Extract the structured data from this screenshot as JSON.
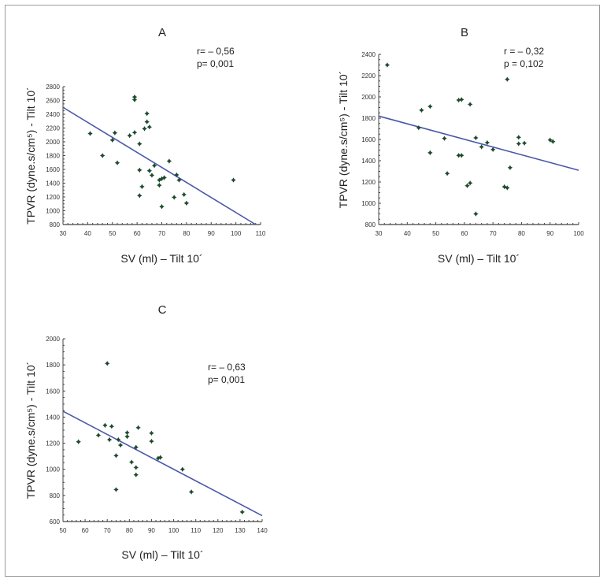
{
  "colors": {
    "point": "#1d4a2c",
    "fit_line": "#4a58a8",
    "axis": "#444444"
  },
  "chart_data": [
    {
      "type": "scatter",
      "title": "A",
      "xlabel": "SV (ml) – Tilt 10´",
      "ylabel": "TPVR (dyne.s/cm⁵) - Tilt 10´",
      "annotations": [
        "r= – 0,56",
        "p= 0,001"
      ],
      "xlim": [
        30,
        110
      ],
      "ylim": [
        800,
        2800
      ],
      "xticks": [
        30,
        40,
        50,
        60,
        70,
        80,
        90,
        100,
        110
      ],
      "yticks": [
        800,
        1000,
        1200,
        1400,
        1600,
        1800,
        2000,
        2200,
        2400,
        2600,
        2800
      ],
      "points": [
        [
          41,
          2120
        ],
        [
          46,
          1800
        ],
        [
          51,
          2130
        ],
        [
          50,
          2025
        ],
        [
          52,
          1695
        ],
        [
          57,
          2090
        ],
        [
          59,
          2135
        ],
        [
          59,
          2650
        ],
        [
          59,
          2610
        ],
        [
          61,
          1970
        ],
        [
          63,
          2190
        ],
        [
          64,
          2290
        ],
        [
          64,
          2410
        ],
        [
          65,
          2215
        ],
        [
          61,
          1590
        ],
        [
          65,
          1580
        ],
        [
          67,
          1655
        ],
        [
          66,
          1515
        ],
        [
          73,
          1720
        ],
        [
          69,
          1445
        ],
        [
          70,
          1465
        ],
        [
          71,
          1480
        ],
        [
          76,
          1520
        ],
        [
          77,
          1445
        ],
        [
          69,
          1370
        ],
        [
          62,
          1350
        ],
        [
          61,
          1220
        ],
        [
          75,
          1195
        ],
        [
          79,
          1235
        ],
        [
          80,
          1110
        ],
        [
          70,
          1060
        ],
        [
          99,
          1445
        ]
      ],
      "fit_line": [
        [
          30,
          2500
        ],
        [
          108,
          800
        ]
      ]
    },
    {
      "type": "scatter",
      "title": "B",
      "xlabel": "SV (ml) – Tilt 10´",
      "ylabel": "TPVR (dyne.s/cm⁵) - Tilt 10´",
      "annotations": [
        "r = – 0,32",
        "p = 0,102"
      ],
      "xlim": [
        30,
        100
      ],
      "ylim": [
        800,
        2400
      ],
      "xticks": [
        30,
        40,
        50,
        60,
        70,
        80,
        90,
        100
      ],
      "yticks": [
        800,
        1000,
        1200,
        1400,
        1600,
        1800,
        2000,
        2200,
        2400
      ],
      "points": [
        [
          33,
          2300
        ],
        [
          75,
          2165
        ],
        [
          58,
          1970
        ],
        [
          59,
          1975
        ],
        [
          62,
          1930
        ],
        [
          48,
          1910
        ],
        [
          45,
          1875
        ],
        [
          44,
          1710
        ],
        [
          53,
          1610
        ],
        [
          64,
          1615
        ],
        [
          66,
          1530
        ],
        [
          68,
          1570
        ],
        [
          70,
          1505
        ],
        [
          79,
          1620
        ],
        [
          79,
          1560
        ],
        [
          81,
          1565
        ],
        [
          90,
          1595
        ],
        [
          91,
          1580
        ],
        [
          48,
          1475
        ],
        [
          58,
          1450
        ],
        [
          59,
          1450
        ],
        [
          76,
          1335
        ],
        [
          54,
          1280
        ],
        [
          61,
          1165
        ],
        [
          62,
          1190
        ],
        [
          74,
          1155
        ],
        [
          75,
          1145
        ],
        [
          64,
          900
        ]
      ],
      "fit_line": [
        [
          30,
          1820
        ],
        [
          100,
          1310
        ]
      ]
    },
    {
      "type": "scatter",
      "title": "C",
      "xlabel": "SV (ml) – Tilt 10´",
      "ylabel": "TPVR (dyne.s/cm⁵) - Tilt 10´",
      "annotations": [
        "r= – 0,63",
        "p= 0,001"
      ],
      "xlim": [
        50,
        140
      ],
      "ylim": [
        600,
        2000
      ],
      "xticks": [
        50,
        60,
        70,
        80,
        90,
        100,
        110,
        120,
        130,
        140
      ],
      "yticks": [
        600,
        800,
        1000,
        1200,
        1400,
        1600,
        1800,
        2000
      ],
      "points": [
        [
          70,
          1811
        ],
        [
          57,
          1211
        ],
        [
          66,
          1261
        ],
        [
          69,
          1337
        ],
        [
          72,
          1329
        ],
        [
          71,
          1227
        ],
        [
          75,
          1227
        ],
        [
          76,
          1185
        ],
        [
          74,
          1105
        ],
        [
          79,
          1281
        ],
        [
          79,
          1251
        ],
        [
          84,
          1319
        ],
        [
          83,
          1169
        ],
        [
          90,
          1277
        ],
        [
          90,
          1215
        ],
        [
          81,
          1055
        ],
        [
          83,
          1014
        ],
        [
          83,
          958
        ],
        [
          93,
          1085
        ],
        [
          94,
          1091
        ],
        [
          104,
          1000
        ],
        [
          108,
          827
        ],
        [
          74,
          845
        ],
        [
          131,
          673
        ]
      ],
      "fit_line": [
        [
          50,
          1445
        ],
        [
          140,
          645
        ]
      ]
    }
  ]
}
